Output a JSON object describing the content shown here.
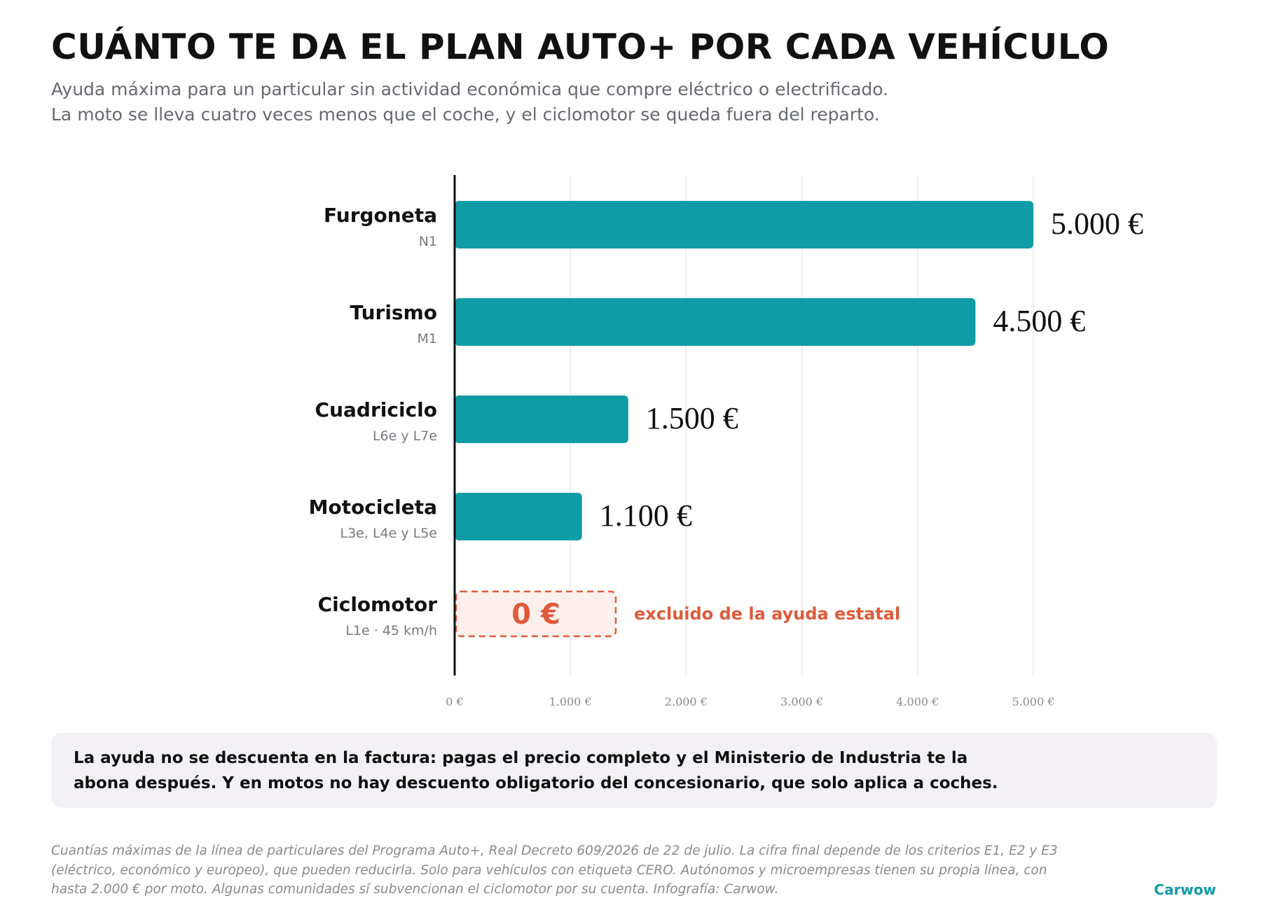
{
  "header": {
    "title": "CUÁNTO TE DA EL PLAN AUTO+ POR CADA VEHÍCULO",
    "subtitle_lines": [
      "Ayuda máxima para un particular sin actividad económica que compre eléctrico o electrificado.",
      "La moto se lleva cuatro veces menos que el coche, y el ciclomotor se queda fuera del reparto."
    ]
  },
  "chart_data": {
    "type": "bar",
    "orientation": "horizontal",
    "categories": [
      "Furgoneta",
      "Turismo",
      "Cuadriciclo",
      "Motocicleta",
      "Ciclomotor"
    ],
    "category_codes": [
      "N1",
      "M1",
      "L6e y L7e",
      "L3e, L4e y L5e",
      "L1e · 45 km/h"
    ],
    "values": [
      5000,
      4500,
      1500,
      1100,
      0
    ],
    "value_labels": [
      "5.000 €",
      "4.500 €",
      "1.500 €",
      "1.100 €",
      "0 €"
    ],
    "excluded_note": "excluido de la ayuda estatal",
    "xlim": [
      0,
      5000
    ],
    "x_ticks": [
      0,
      1000,
      2000,
      3000,
      4000,
      5000
    ],
    "x_tick_labels": [
      "0 €",
      "1.000 €",
      "2.000 €",
      "3.000 €",
      "4.000 €",
      "5.000 €"
    ],
    "grid": true,
    "colors": {
      "bar": "#109ca6",
      "excluded": "#e05a3a",
      "excluded_fill": "#fdf0ec",
      "grid": "#e8e8ec",
      "axis": "#111111"
    }
  },
  "note": {
    "lines": [
      "La ayuda no se descuenta en la factura: pagas el precio completo y el Ministerio de Industria te la",
      "abona después. Y en motos no hay descuento obligatorio del concesionario, que solo aplica a coches."
    ]
  },
  "footnote": {
    "lines": [
      "Cuantías máximas de la línea de particulares del Programa Auto+, Real Decreto 609/2026 de 22 de julio. La cifra final depende de los criterios E1, E2 y E3",
      "(eléctrico, económico y europeo), que pueden reducirla. Solo para vehículos con etiqueta CERO. Autónomos y microempresas tienen su propia línea, con",
      "hasta 2.000 € por moto. Algunas comunidades sí subvencionan el ciclomotor por su cuenta. Infografía: Carwow."
    ]
  },
  "brand": "Carwow"
}
